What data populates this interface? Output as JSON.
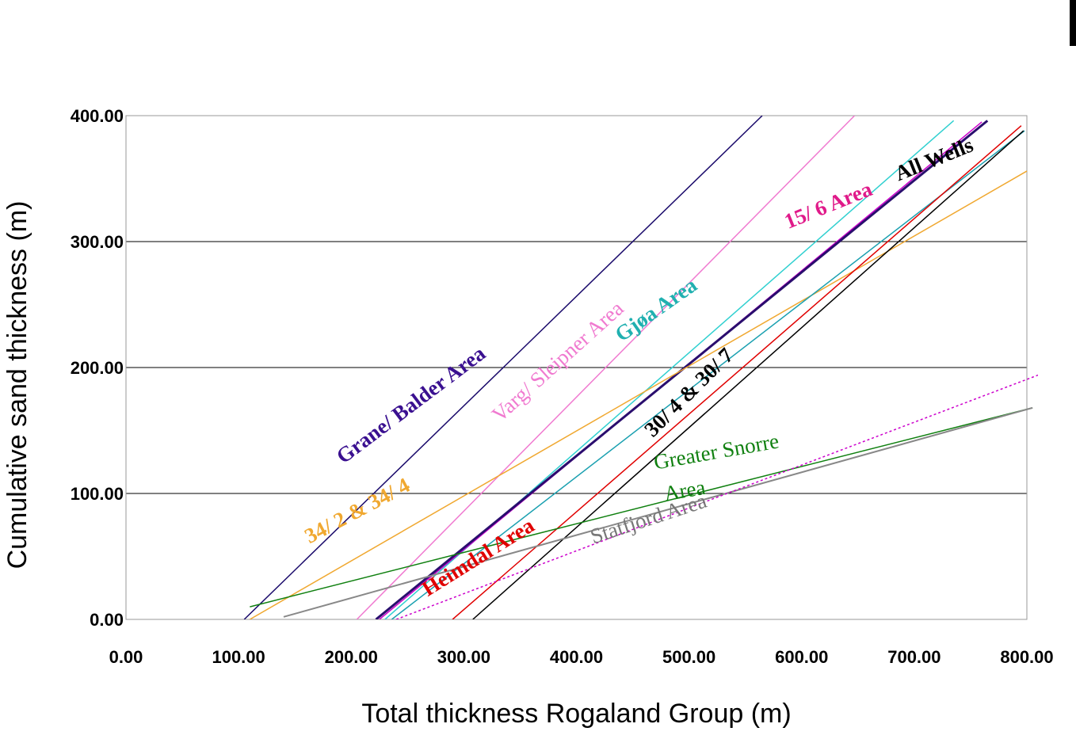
{
  "chart_data": {
    "type": "line",
    "xlabel": "Total thickness Rogaland Group (m)",
    "ylabel": "Cumulative sand thickness (m)",
    "xlim": [
      0,
      800
    ],
    "ylim": [
      0,
      400
    ],
    "x_ticks": [
      "0.00",
      "100.00",
      "200.00",
      "300.00",
      "400.00",
      "500.00",
      "600.00",
      "700.00",
      "800.00"
    ],
    "y_ticks": [
      "0.00",
      "100.00",
      "200.00",
      "300.00",
      "400.00"
    ],
    "grid": "horizontal",
    "series": [
      {
        "name": "Grane/ Balder Area",
        "color": "#1a0a6b",
        "width": 1.5,
        "dash": "",
        "x": [
          105,
          565
        ],
        "y": [
          0,
          400
        ]
      },
      {
        "name": "Varg/ Sleipner Area",
        "color": "#f07ad0",
        "width": 1.5,
        "dash": "",
        "x": [
          205,
          647
        ],
        "y": [
          0,
          400
        ]
      },
      {
        "name": "Gjøa Area",
        "color": "#30d0d0",
        "width": 1.5,
        "dash": "",
        "x": [
          230,
          735
        ],
        "y": [
          0,
          396
        ]
      },
      {
        "name": "15/ 6 Area",
        "color": "#cc00cc",
        "width": 1.5,
        "dash": "",
        "x": [
          225,
          760
        ],
        "y": [
          0,
          395
        ]
      },
      {
        "name": "All Wells",
        "color": "#2a0e6e",
        "width": 3,
        "dash": "",
        "x": [
          222,
          765
        ],
        "y": [
          0,
          396
        ]
      },
      {
        "name": "34/ 2 & 34/ 4",
        "color": "#f0a830",
        "width": 1.5,
        "dash": "",
        "x": [
          110,
          800
        ],
        "y": [
          0,
          356
        ]
      },
      {
        "name": "",
        "color": "#1aa0b0",
        "width": 1.5,
        "dash": "",
        "x": [
          236,
          798
        ],
        "y": [
          0,
          388
        ]
      },
      {
        "name": "Heimdal Area",
        "color": "#e00000",
        "width": 1.5,
        "dash": "",
        "x": [
          290,
          795
        ],
        "y": [
          0,
          392
        ]
      },
      {
        "name": "30/ 4 & 30/ 7",
        "color": "#000000",
        "width": 1.5,
        "dash": "",
        "x": [
          308,
          797
        ],
        "y": [
          0,
          388
        ]
      },
      {
        "name": "Greater Snorre Area",
        "color": "#108010",
        "width": 1.5,
        "dash": "",
        "x": [
          110,
          805
        ],
        "y": [
          10,
          168
        ]
      },
      {
        "name": "Statfjord Area",
        "color": "#888888",
        "width": 2,
        "dash": "",
        "x": [
          140,
          805
        ],
        "y": [
          2,
          168
        ]
      },
      {
        "name": "",
        "color": "#cc00cc",
        "width": 1.5,
        "dash": "3,3",
        "x": [
          240,
          810
        ],
        "y": [
          0,
          194
        ]
      }
    ],
    "annotations": [
      {
        "text": "Grane/ Balder Area",
        "color": "#3a1090",
        "bold": true,
        "x": 193,
        "y": 123,
        "angle": -37
      },
      {
        "text": "Varg/ Sleipner Area",
        "color": "#f07ad0",
        "bold": false,
        "x": 332,
        "y": 156,
        "angle": -42
      },
      {
        "text": "Gjøa Area",
        "color": "#20b0b0",
        "bold": true,
        "x": 440,
        "y": 220,
        "angle": -35
      },
      {
        "text": "15/ 6 Area",
        "color": "#e01a8a",
        "bold": true,
        "x": 588,
        "y": 310,
        "angle": -22
      },
      {
        "text": "All Wells",
        "color": "#000000",
        "bold": true,
        "x": 686,
        "y": 348,
        "angle": -22
      },
      {
        "text": "34/ 2 & 34/ 4",
        "color": "#f0a830",
        "bold": true,
        "x": 163,
        "y": 60,
        "angle": -28
      },
      {
        "text": "Heimdal Area",
        "color": "#e00000",
        "bold": true,
        "x": 268,
        "y": 18,
        "angle": -32
      },
      {
        "text": "30/ 4 & 30/ 7",
        "color": "#000000",
        "bold": true,
        "x": 468,
        "y": 144,
        "angle": -45
      },
      {
        "text": "Greater Snorre",
        "color": "#108010",
        "bold": false,
        "x": 470,
        "y": 119,
        "angle": -10
      },
      {
        "text": "Area",
        "color": "#108010",
        "bold": false,
        "x": 479,
        "y": 94,
        "angle": -10
      },
      {
        "text": "Statfjord Area",
        "color": "#777777",
        "bold": false,
        "x": 415,
        "y": 60,
        "angle": -18
      }
    ]
  }
}
